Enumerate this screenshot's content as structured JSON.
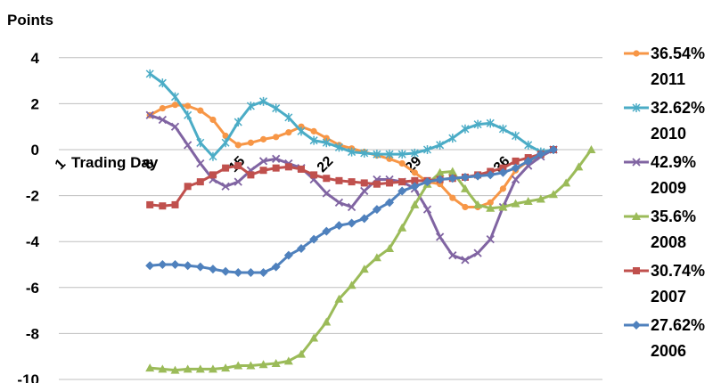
{
  "chart_data": {
    "type": "line",
    "ylabel": "Points",
    "xlabel": "Trading Day",
    "ylim": [
      -10,
      4
    ],
    "yticks": [
      4,
      2,
      0,
      -2,
      -4,
      -6,
      -8,
      -10
    ],
    "xlim": [
      1,
      41
    ],
    "xticks": [
      1,
      8,
      15,
      22,
      29,
      36
    ],
    "grid": "horizontal",
    "legend_position": "right",
    "series": [
      {
        "key": "s2011",
        "legend_line1": "36.54%",
        "legend_line2": "2011",
        "color": "#F79646",
        "marker": "circle",
        "x": [
          8,
          9,
          10,
          11,
          12,
          13,
          14,
          15,
          16,
          17,
          18,
          19,
          20,
          21,
          22,
          23,
          24,
          25,
          26,
          27,
          28,
          29,
          30,
          31,
          32,
          33,
          34,
          35,
          36,
          37,
          38,
          39,
          40
        ],
        "values": [
          1.5,
          1.8,
          1.95,
          1.9,
          1.7,
          1.3,
          0.6,
          0.2,
          0.3,
          0.45,
          0.55,
          0.75,
          1.0,
          0.8,
          0.5,
          0.2,
          0.05,
          -0.1,
          -0.25,
          -0.4,
          -0.6,
          -1.0,
          -1.4,
          -1.5,
          -2.1,
          -2.5,
          -2.5,
          -2.3,
          -1.7,
          -0.9,
          -0.5,
          -0.25,
          0.0
        ]
      },
      {
        "key": "s2010",
        "legend_line1": "32.62%",
        "legend_line2": "2010",
        "color": "#4BACC6",
        "marker": "star",
        "x": [
          8,
          9,
          10,
          11,
          12,
          13,
          14,
          15,
          16,
          17,
          18,
          19,
          20,
          21,
          22,
          23,
          24,
          25,
          26,
          27,
          28,
          29,
          30,
          31,
          32,
          33,
          34,
          35,
          36,
          37,
          38,
          39,
          40
        ],
        "values": [
          3.3,
          2.9,
          2.3,
          1.5,
          0.3,
          -0.3,
          0.3,
          1.2,
          1.9,
          2.1,
          1.8,
          1.4,
          0.8,
          0.4,
          0.3,
          0.1,
          -0.1,
          -0.15,
          -0.2,
          -0.2,
          -0.2,
          -0.15,
          0.0,
          0.2,
          0.5,
          0.9,
          1.1,
          1.15,
          0.9,
          0.6,
          0.2,
          -0.1,
          0.0
        ]
      },
      {
        "key": "s2009",
        "legend_line1": "42.9%",
        "legend_line2": "2009",
        "color": "#8064A2",
        "marker": "x",
        "x": [
          8,
          9,
          10,
          11,
          12,
          13,
          14,
          15,
          16,
          17,
          18,
          19,
          20,
          21,
          22,
          23,
          24,
          25,
          26,
          27,
          28,
          29,
          30,
          31,
          32,
          33,
          34,
          35,
          36,
          37,
          38,
          39,
          40
        ],
        "values": [
          1.5,
          1.3,
          1.0,
          0.2,
          -0.6,
          -1.3,
          -1.6,
          -1.4,
          -0.9,
          -0.5,
          -0.4,
          -0.6,
          -0.8,
          -1.3,
          -1.9,
          -2.3,
          -2.5,
          -1.8,
          -1.3,
          -1.3,
          -1.4,
          -1.7,
          -2.6,
          -3.8,
          -4.6,
          -4.8,
          -4.5,
          -3.9,
          -2.5,
          -1.3,
          -0.7,
          -0.3,
          0.0
        ]
      },
      {
        "key": "s2008",
        "legend_line1": "35.6%",
        "legend_line2": "2008",
        "color": "#9BBB59",
        "marker": "triangle",
        "x": [
          8,
          9,
          10,
          11,
          12,
          13,
          14,
          15,
          16,
          17,
          18,
          19,
          20,
          21,
          22,
          23,
          24,
          25,
          26,
          27,
          28,
          29,
          30,
          31,
          32,
          33,
          34,
          35,
          36,
          37,
          38,
          39,
          40,
          41,
          42,
          43
        ],
        "values": [
          -9.5,
          -9.55,
          -9.6,
          -9.55,
          -9.55,
          -9.55,
          -9.5,
          -9.4,
          -9.4,
          -9.35,
          -9.3,
          -9.2,
          -8.9,
          -8.2,
          -7.5,
          -6.5,
          -5.9,
          -5.2,
          -4.7,
          -4.3,
          -3.4,
          -2.4,
          -1.5,
          -1.0,
          -0.95,
          -1.7,
          -2.4,
          -2.55,
          -2.5,
          -2.35,
          -2.25,
          -2.15,
          -1.95,
          -1.45,
          -0.75,
          0.0
        ]
      },
      {
        "key": "s2007",
        "legend_line1": "30.74%",
        "legend_line2": "2007",
        "color": "#C0504D",
        "marker": "square",
        "x": [
          8,
          9,
          10,
          11,
          12,
          13,
          14,
          15,
          16,
          17,
          18,
          19,
          20,
          21,
          22,
          23,
          24,
          25,
          26,
          27,
          28,
          29,
          30,
          31,
          32,
          33,
          34,
          35,
          36,
          37,
          38,
          39,
          40
        ],
        "values": [
          -2.4,
          -2.45,
          -2.4,
          -1.6,
          -1.4,
          -1.1,
          -0.8,
          -0.7,
          -1.1,
          -0.9,
          -0.8,
          -0.75,
          -0.85,
          -1.1,
          -1.25,
          -1.35,
          -1.4,
          -1.45,
          -1.5,
          -1.45,
          -1.4,
          -1.35,
          -1.35,
          -1.3,
          -1.25,
          -1.2,
          -1.1,
          -0.95,
          -0.8,
          -0.5,
          -0.35,
          -0.2,
          0.0
        ]
      },
      {
        "key": "s2006",
        "legend_line1": "27.62%",
        "legend_line2": "2006",
        "color": "#4F81BD",
        "marker": "diamond",
        "x": [
          8,
          9,
          10,
          11,
          12,
          13,
          14,
          15,
          16,
          17,
          18,
          19,
          20,
          21,
          22,
          23,
          24,
          25,
          26,
          27,
          28,
          29,
          30,
          31,
          32,
          33,
          34,
          35,
          36,
          37,
          38,
          39,
          40
        ],
        "values": [
          -5.05,
          -5.0,
          -5.0,
          -5.05,
          -5.1,
          -5.2,
          -5.3,
          -5.35,
          -5.35,
          -5.35,
          -5.1,
          -4.6,
          -4.3,
          -3.9,
          -3.55,
          -3.3,
          -3.2,
          -3.0,
          -2.6,
          -2.3,
          -1.8,
          -1.6,
          -1.4,
          -1.3,
          -1.25,
          -1.2,
          -1.15,
          -1.1,
          -1.0,
          -0.8,
          -0.5,
          -0.2,
          0.0
        ]
      }
    ]
  }
}
